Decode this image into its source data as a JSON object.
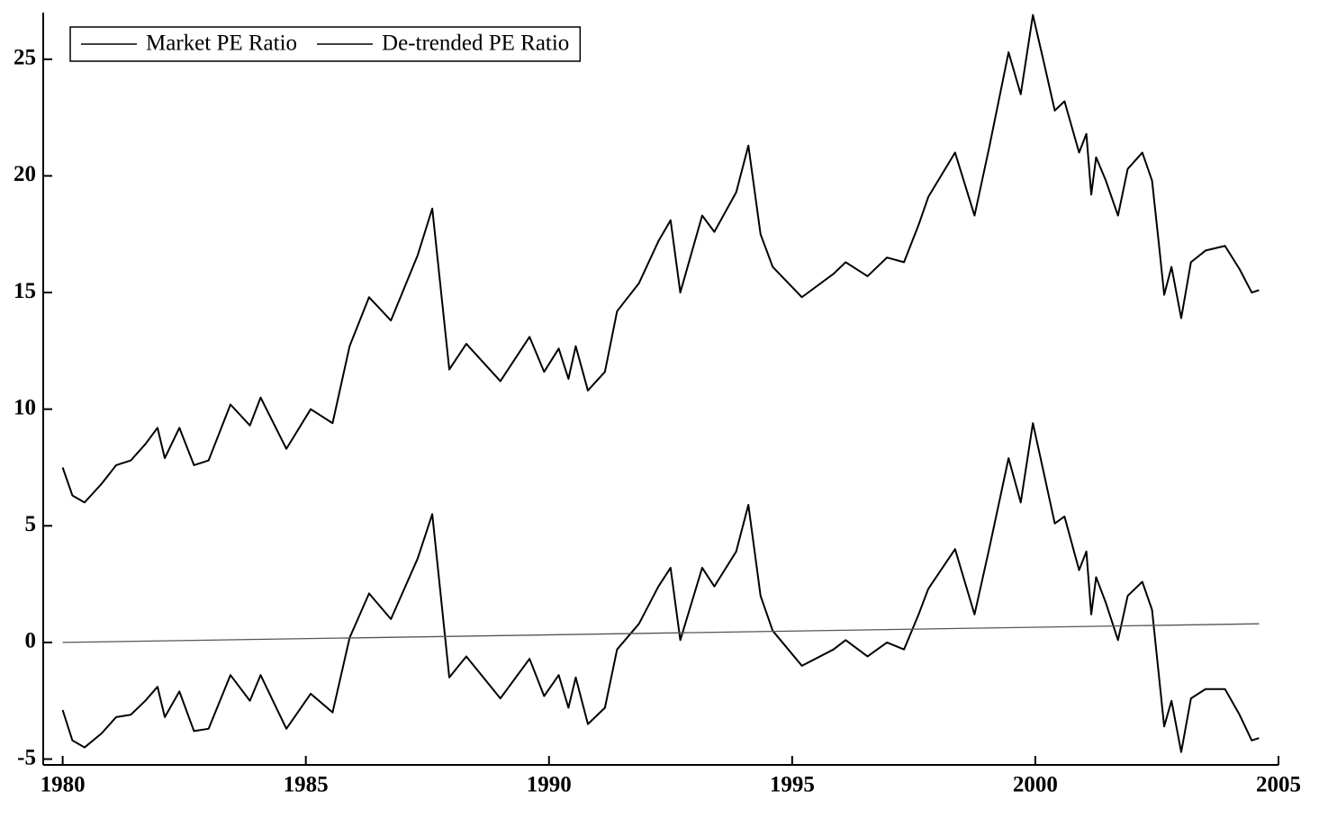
{
  "chart_data": {
    "type": "line",
    "x": [
      1980.0,
      1980.2,
      1980.45,
      1980.8,
      1981.1,
      1981.4,
      1981.7,
      1981.95,
      1982.1,
      1982.4,
      1982.7,
      1983.0,
      1983.45,
      1983.85,
      1984.07,
      1984.6,
      1985.1,
      1985.55,
      1985.9,
      1986.3,
      1986.75,
      1987.3,
      1987.6,
      1987.95,
      1988.3,
      1989.0,
      1989.6,
      1989.9,
      1990.2,
      1990.4,
      1990.55,
      1990.8,
      1991.15,
      1991.4,
      1991.85,
      1992.25,
      1992.5,
      1992.7,
      1993.15,
      1993.4,
      1993.85,
      1994.1,
      1994.35,
      1994.6,
      1995.2,
      1995.85,
      1996.1,
      1996.55,
      1996.95,
      1997.3,
      1997.6,
      1997.8,
      1998.35,
      1998.75,
      1999.05,
      1999.45,
      1999.7,
      1999.95,
      2000.15,
      2000.4,
      2000.6,
      2000.9,
      2001.05,
      2001.15,
      2001.25,
      2001.45,
      2001.7,
      2001.9,
      2002.2,
      2002.4,
      2002.55,
      2002.65,
      2002.8,
      2003.0,
      2003.2,
      2003.5,
      2003.9,
      2004.2,
      2004.45,
      2004.6
    ],
    "series": [
      {
        "name": "Market PE Ratio",
        "color": "#000000",
        "values": [
          7.5,
          6.3,
          6.0,
          6.8,
          7.6,
          7.8,
          8.5,
          9.2,
          7.9,
          9.2,
          7.6,
          7.8,
          10.2,
          9.3,
          10.5,
          8.3,
          10.0,
          9.4,
          12.7,
          14.8,
          13.8,
          16.6,
          18.6,
          11.7,
          12.8,
          11.2,
          13.1,
          11.6,
          12.6,
          11.3,
          12.7,
          10.8,
          11.6,
          14.2,
          15.4,
          17.2,
          18.1,
          15.0,
          18.3,
          17.6,
          19.3,
          21.3,
          17.5,
          16.1,
          14.8,
          15.8,
          16.3,
          15.7,
          16.5,
          16.3,
          17.9,
          19.1,
          21.0,
          18.3,
          21.2,
          25.3,
          23.5,
          26.9,
          25.1,
          22.8,
          23.2,
          21.0,
          21.8,
          19.2,
          20.8,
          19.8,
          18.3,
          20.3,
          21.0,
          19.8,
          16.9,
          14.9,
          16.1,
          13.9,
          16.3,
          16.8,
          17.0,
          16.0,
          15.0,
          15.1
        ]
      },
      {
        "name": "De-trended PE Ratio",
        "color": "#000000",
        "values": [
          -2.9,
          -4.2,
          -4.5,
          -3.9,
          -3.2,
          -3.1,
          -2.5,
          -1.9,
          -3.2,
          -2.1,
          -3.8,
          -3.7,
          -1.4,
          -2.5,
          -1.4,
          -3.7,
          -2.2,
          -3.0,
          0.2,
          2.1,
          1.0,
          3.6,
          5.5,
          -1.5,
          -0.6,
          -2.4,
          -0.7,
          -2.3,
          -1.4,
          -2.8,
          -1.5,
          -3.5,
          -2.8,
          -0.3,
          0.8,
          2.4,
          3.2,
          0.1,
          3.2,
          2.4,
          3.9,
          5.9,
          2.0,
          0.5,
          -1.0,
          -0.3,
          0.1,
          -0.6,
          0.0,
          -0.3,
          1.2,
          2.3,
          4.0,
          1.2,
          4.0,
          7.9,
          6.0,
          9.4,
          7.5,
          5.1,
          5.4,
          3.1,
          3.9,
          1.2,
          2.8,
          1.7,
          0.1,
          2.0,
          2.6,
          1.4,
          -1.6,
          -3.6,
          -2.5,
          -4.7,
          -2.4,
          -2.0,
          -2.0,
          -3.1,
          -4.2,
          -4.1
        ]
      },
      {
        "color": "#555555",
        "x": [
          1980.0,
          2004.6
        ],
        "values": [
          0.0,
          0.8
        ]
      }
    ],
    "xlim": [
      1979.6,
      2005
    ],
    "xticks": [
      1980,
      1985,
      1990,
      1995,
      2000,
      2005
    ],
    "ylim": [
      -5.25,
      27
    ],
    "yticks": [
      -5,
      0,
      5,
      10,
      15,
      20,
      25
    ],
    "legend": "upper left"
  }
}
